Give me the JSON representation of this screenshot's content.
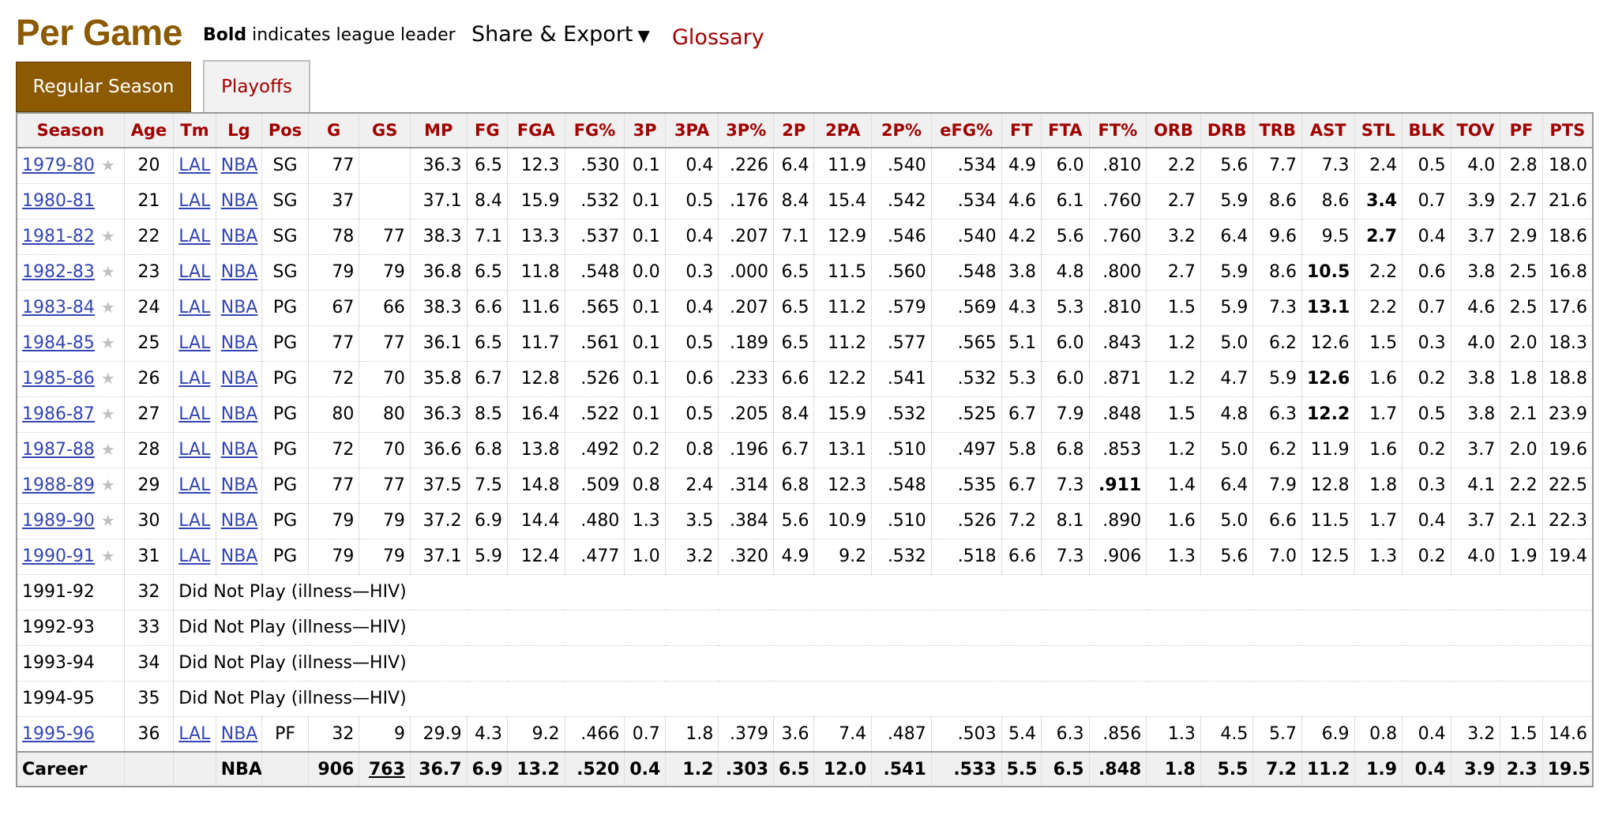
{
  "header": {
    "title": "Per Game",
    "legend_bold": "Bold",
    "legend_rest": " indicates league leader",
    "share_label": "Share & Export",
    "share_caret": "▼",
    "glossary_label": "Glossary"
  },
  "tabs": [
    {
      "label": "Regular Season",
      "active": true
    },
    {
      "label": "Playoffs",
      "active": false
    }
  ],
  "colors": {
    "brand": "#8c5a00",
    "header_text": "#a00000",
    "link": "#3345b5"
  },
  "table": {
    "columns": [
      "Season",
      "Age",
      "Tm",
      "Lg",
      "Pos",
      "G",
      "GS",
      "MP",
      "FG",
      "FGA",
      "FG%",
      "3P",
      "3PA",
      "3P%",
      "2P",
      "2PA",
      "2P%",
      "eFG%",
      "FT",
      "FTA",
      "FT%",
      "ORB",
      "DRB",
      "TRB",
      "AST",
      "STL",
      "BLK",
      "TOV",
      "PF",
      "PTS"
    ],
    "rows": [
      {
        "season": "1979-80",
        "star": true,
        "age": "20",
        "tm": "LAL",
        "lg": "NBA",
        "pos": "SG",
        "stats": [
          "77",
          "",
          "36.3",
          "6.5",
          "12.3",
          ".530",
          "0.1",
          "0.4",
          ".226",
          "6.4",
          "11.9",
          ".540",
          ".534",
          "4.9",
          "6.0",
          ".810",
          "2.2",
          "5.6",
          "7.7",
          "7.3",
          "2.4",
          "0.5",
          "4.0",
          "2.8",
          "18.0"
        ],
        "bold": []
      },
      {
        "season": "1980-81",
        "star": false,
        "age": "21",
        "tm": "LAL",
        "lg": "NBA",
        "pos": "SG",
        "stats": [
          "37",
          "",
          "37.1",
          "8.4",
          "15.9",
          ".532",
          "0.1",
          "0.5",
          ".176",
          "8.4",
          "15.4",
          ".542",
          ".534",
          "4.6",
          "6.1",
          ".760",
          "2.7",
          "5.9",
          "8.6",
          "8.6",
          "3.4",
          "0.7",
          "3.9",
          "2.7",
          "21.6"
        ],
        "bold": [
          20
        ]
      },
      {
        "season": "1981-82",
        "star": true,
        "age": "22",
        "tm": "LAL",
        "lg": "NBA",
        "pos": "SG",
        "stats": [
          "78",
          "77",
          "38.3",
          "7.1",
          "13.3",
          ".537",
          "0.1",
          "0.4",
          ".207",
          "7.1",
          "12.9",
          ".546",
          ".540",
          "4.2",
          "5.6",
          ".760",
          "3.2",
          "6.4",
          "9.6",
          "9.5",
          "2.7",
          "0.4",
          "3.7",
          "2.9",
          "18.6"
        ],
        "bold": [
          20
        ]
      },
      {
        "season": "1982-83",
        "star": true,
        "age": "23",
        "tm": "LAL",
        "lg": "NBA",
        "pos": "SG",
        "stats": [
          "79",
          "79",
          "36.8",
          "6.5",
          "11.8",
          ".548",
          "0.0",
          "0.3",
          ".000",
          "6.5",
          "11.5",
          ".560",
          ".548",
          "3.8",
          "4.8",
          ".800",
          "2.7",
          "5.9",
          "8.6",
          "10.5",
          "2.2",
          "0.6",
          "3.8",
          "2.5",
          "16.8"
        ],
        "bold": [
          19
        ]
      },
      {
        "season": "1983-84",
        "star": true,
        "age": "24",
        "tm": "LAL",
        "lg": "NBA",
        "pos": "PG",
        "stats": [
          "67",
          "66",
          "38.3",
          "6.6",
          "11.6",
          ".565",
          "0.1",
          "0.4",
          ".207",
          "6.5",
          "11.2",
          ".579",
          ".569",
          "4.3",
          "5.3",
          ".810",
          "1.5",
          "5.9",
          "7.3",
          "13.1",
          "2.2",
          "0.7",
          "4.6",
          "2.5",
          "17.6"
        ],
        "bold": [
          19
        ]
      },
      {
        "season": "1984-85",
        "star": true,
        "age": "25",
        "tm": "LAL",
        "lg": "NBA",
        "pos": "PG",
        "stats": [
          "77",
          "77",
          "36.1",
          "6.5",
          "11.7",
          ".561",
          "0.1",
          "0.5",
          ".189",
          "6.5",
          "11.2",
          ".577",
          ".565",
          "5.1",
          "6.0",
          ".843",
          "1.2",
          "5.0",
          "6.2",
          "12.6",
          "1.5",
          "0.3",
          "4.0",
          "2.0",
          "18.3"
        ],
        "bold": []
      },
      {
        "season": "1985-86",
        "star": true,
        "age": "26",
        "tm": "LAL",
        "lg": "NBA",
        "pos": "PG",
        "stats": [
          "72",
          "70",
          "35.8",
          "6.7",
          "12.8",
          ".526",
          "0.1",
          "0.6",
          ".233",
          "6.6",
          "12.2",
          ".541",
          ".532",
          "5.3",
          "6.0",
          ".871",
          "1.2",
          "4.7",
          "5.9",
          "12.6",
          "1.6",
          "0.2",
          "3.8",
          "1.8",
          "18.8"
        ],
        "bold": [
          19
        ]
      },
      {
        "season": "1986-87",
        "star": true,
        "age": "27",
        "tm": "LAL",
        "lg": "NBA",
        "pos": "PG",
        "stats": [
          "80",
          "80",
          "36.3",
          "8.5",
          "16.4",
          ".522",
          "0.1",
          "0.5",
          ".205",
          "8.4",
          "15.9",
          ".532",
          ".525",
          "6.7",
          "7.9",
          ".848",
          "1.5",
          "4.8",
          "6.3",
          "12.2",
          "1.7",
          "0.5",
          "3.8",
          "2.1",
          "23.9"
        ],
        "bold": [
          19
        ]
      },
      {
        "season": "1987-88",
        "star": true,
        "age": "28",
        "tm": "LAL",
        "lg": "NBA",
        "pos": "PG",
        "stats": [
          "72",
          "70",
          "36.6",
          "6.8",
          "13.8",
          ".492",
          "0.2",
          "0.8",
          ".196",
          "6.7",
          "13.1",
          ".510",
          ".497",
          "5.8",
          "6.8",
          ".853",
          "1.2",
          "5.0",
          "6.2",
          "11.9",
          "1.6",
          "0.2",
          "3.7",
          "2.0",
          "19.6"
        ],
        "bold": []
      },
      {
        "season": "1988-89",
        "star": true,
        "age": "29",
        "tm": "LAL",
        "lg": "NBA",
        "pos": "PG",
        "stats": [
          "77",
          "77",
          "37.5",
          "7.5",
          "14.8",
          ".509",
          "0.8",
          "2.4",
          ".314",
          "6.8",
          "12.3",
          ".548",
          ".535",
          "6.7",
          "7.3",
          ".911",
          "1.4",
          "6.4",
          "7.9",
          "12.8",
          "1.8",
          "0.3",
          "4.1",
          "2.2",
          "22.5"
        ],
        "bold": [
          15
        ]
      },
      {
        "season": "1989-90",
        "star": true,
        "age": "30",
        "tm": "LAL",
        "lg": "NBA",
        "pos": "PG",
        "stats": [
          "79",
          "79",
          "37.2",
          "6.9",
          "14.4",
          ".480",
          "1.3",
          "3.5",
          ".384",
          "5.6",
          "10.9",
          ".510",
          ".526",
          "7.2",
          "8.1",
          ".890",
          "1.6",
          "5.0",
          "6.6",
          "11.5",
          "1.7",
          "0.4",
          "3.7",
          "2.1",
          "22.3"
        ],
        "bold": []
      },
      {
        "season": "1990-91",
        "star": true,
        "age": "31",
        "tm": "LAL",
        "lg": "NBA",
        "pos": "PG",
        "stats": [
          "79",
          "79",
          "37.1",
          "5.9",
          "12.4",
          ".477",
          "1.0",
          "3.2",
          ".320",
          "4.9",
          "9.2",
          ".532",
          ".518",
          "6.6",
          "7.3",
          ".906",
          "1.3",
          "5.6",
          "7.0",
          "12.5",
          "1.3",
          "0.2",
          "4.0",
          "1.9",
          "19.4"
        ],
        "bold": []
      },
      {
        "season": "1991-92",
        "dnp": true,
        "age": "32",
        "note": "Did Not Play (illness—HIV)"
      },
      {
        "season": "1992-93",
        "dnp": true,
        "age": "33",
        "note": "Did Not Play (illness—HIV)"
      },
      {
        "season": "1993-94",
        "dnp": true,
        "age": "34",
        "note": "Did Not Play (illness—HIV)"
      },
      {
        "season": "1994-95",
        "dnp": true,
        "age": "35",
        "note": "Did Not Play (illness—HIV)"
      },
      {
        "season": "1995-96",
        "star": false,
        "age": "36",
        "tm": "LAL",
        "lg": "NBA",
        "pos": "PF",
        "stats": [
          "32",
          "9",
          "29.9",
          "4.3",
          "9.2",
          ".466",
          "0.7",
          "1.8",
          ".379",
          "3.6",
          "7.4",
          ".487",
          ".503",
          "5.4",
          "6.3",
          ".856",
          "1.3",
          "4.5",
          "5.7",
          "6.9",
          "0.8",
          "0.4",
          "3.2",
          "1.5",
          "14.6"
        ],
        "bold": []
      }
    ],
    "career": {
      "label": "Career",
      "lg": "NBA",
      "stats": [
        "906",
        "763",
        "36.7",
        "6.9",
        "13.2",
        ".520",
        "0.4",
        "1.2",
        ".303",
        "6.5",
        "12.0",
        ".541",
        ".533",
        "5.5",
        "6.5",
        ".848",
        "1.8",
        "5.5",
        "7.2",
        "11.2",
        "1.9",
        "0.4",
        "3.9",
        "2.3",
        "19.5"
      ]
    }
  }
}
